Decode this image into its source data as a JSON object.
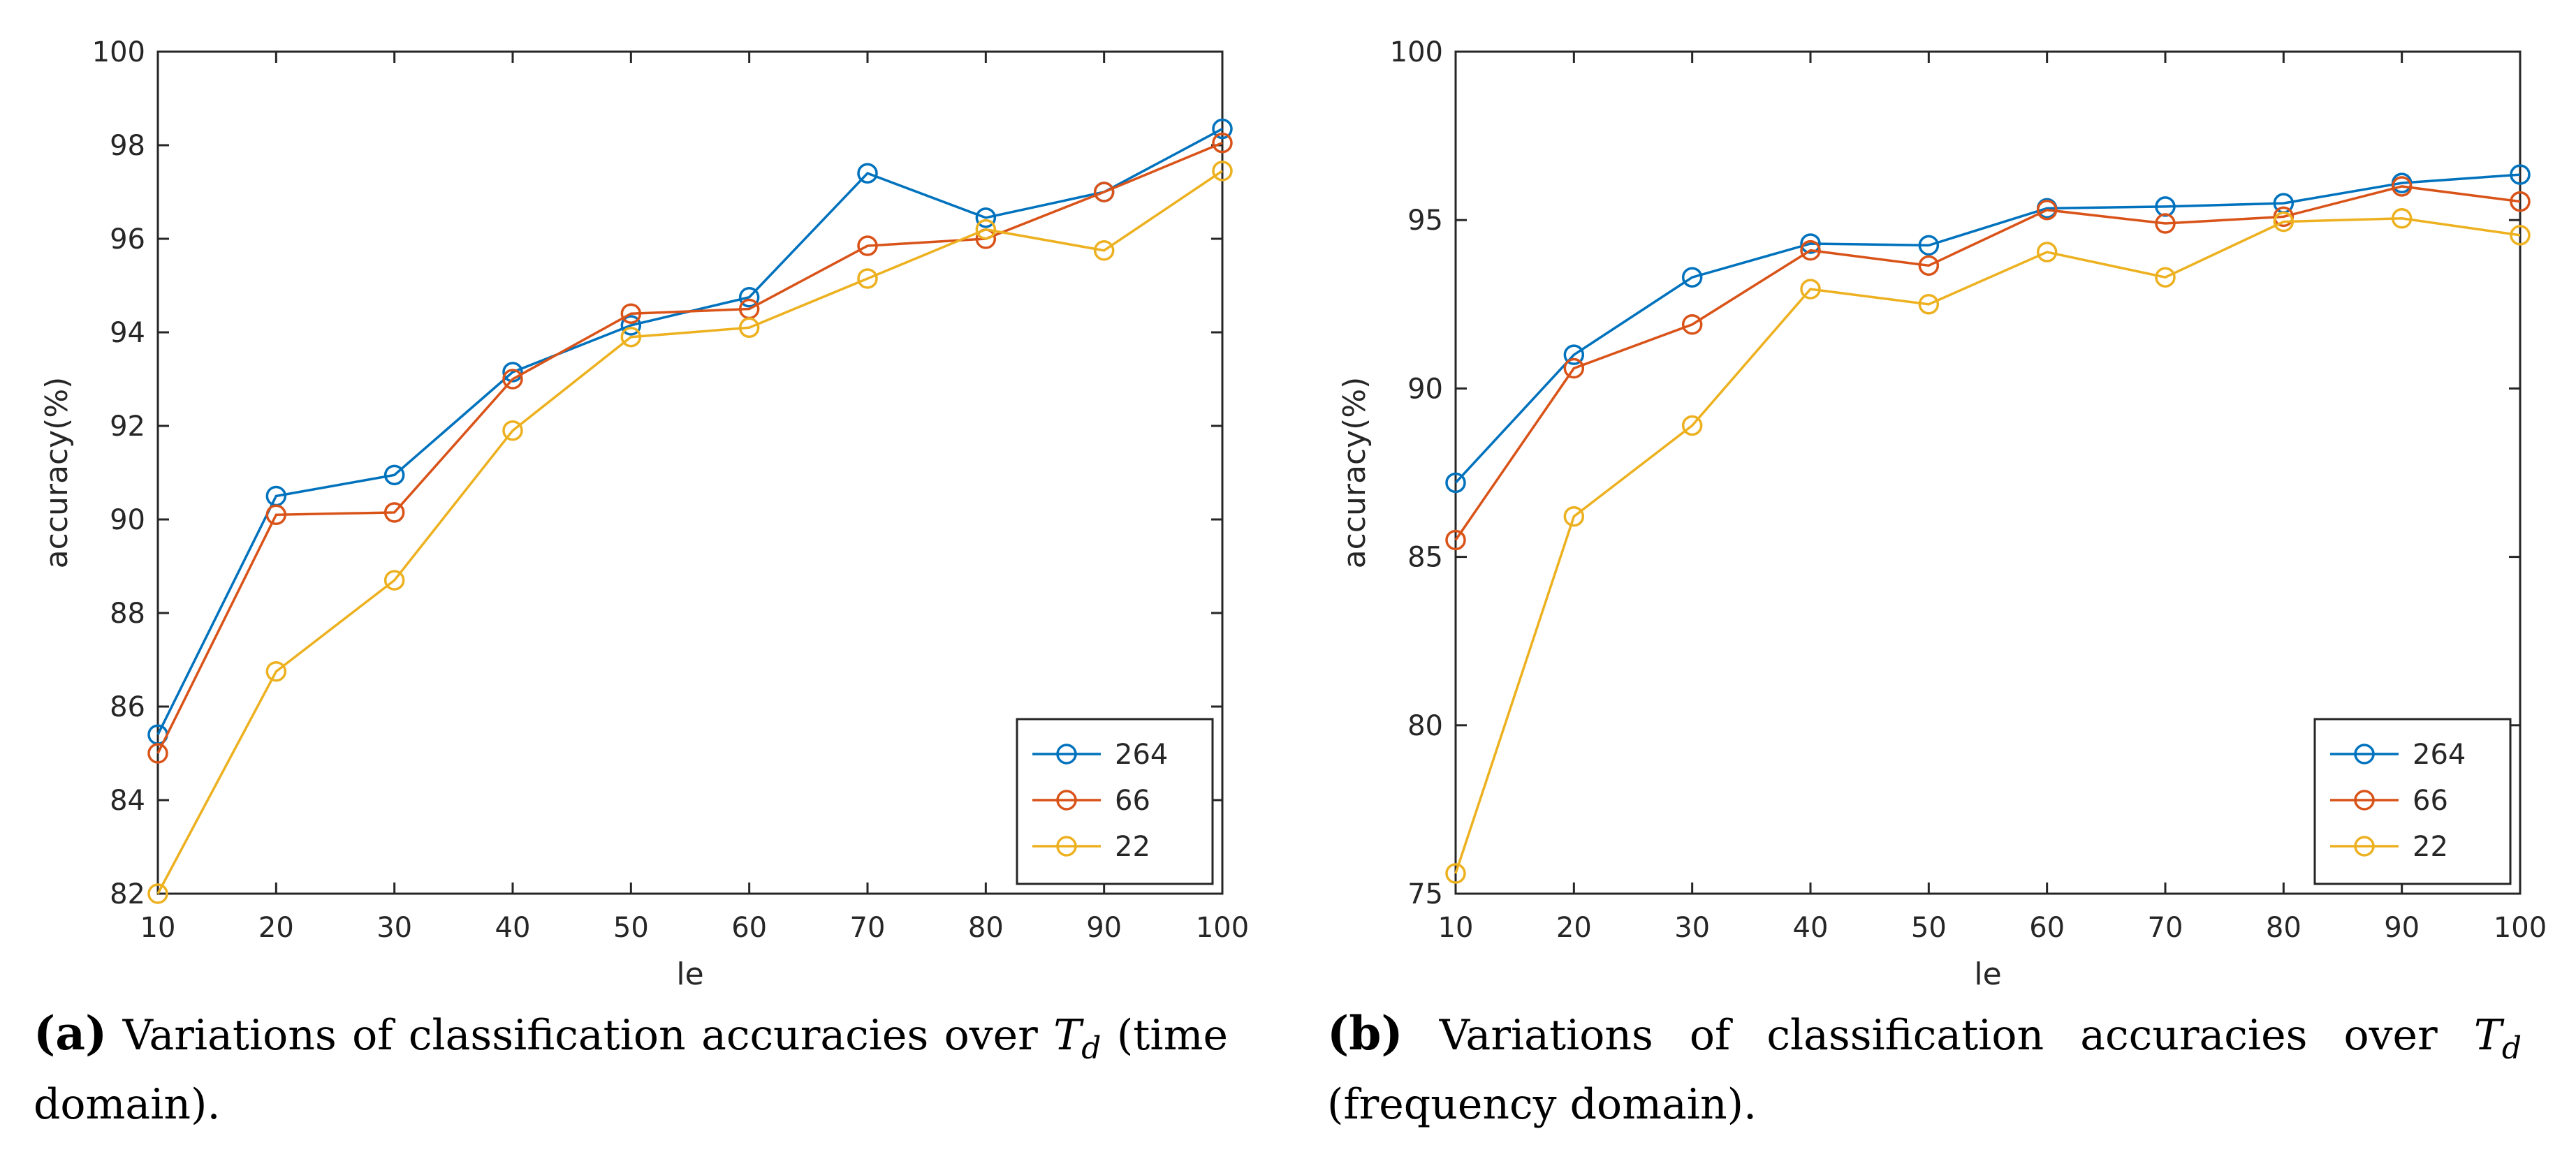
{
  "chart_data": [
    {
      "type": "line",
      "panel": "a",
      "x": [
        10,
        20,
        30,
        40,
        50,
        60,
        70,
        80,
        90,
        100
      ],
      "xlim": [
        10,
        100
      ],
      "ylim": [
        82,
        100
      ],
      "xticks": [
        10,
        20,
        30,
        40,
        50,
        60,
        70,
        80,
        90,
        100
      ],
      "yticks": [
        82,
        84,
        86,
        88,
        90,
        92,
        94,
        96,
        98,
        100
      ],
      "xlabel": "le",
      "ylabel": "accuracy(%)",
      "legend_position": "bottom-right",
      "series": [
        {
          "name": "264",
          "color": "#0072BD",
          "values": [
            85.4,
            90.5,
            90.95,
            93.15,
            94.15,
            94.75,
            97.4,
            96.45,
            97.0,
            98.35
          ]
        },
        {
          "name": "66",
          "color": "#D95319",
          "values": [
            85.0,
            90.1,
            90.15,
            93.0,
            94.4,
            94.5,
            95.85,
            96.0,
            97.0,
            98.05
          ]
        },
        {
          "name": "22",
          "color": "#EDB120",
          "values": [
            82.0,
            86.75,
            88.7,
            91.9,
            93.9,
            94.1,
            95.15,
            96.2,
            95.75,
            97.45
          ]
        }
      ]
    },
    {
      "type": "line",
      "panel": "b",
      "x": [
        10,
        20,
        30,
        40,
        50,
        60,
        70,
        80,
        90,
        100
      ],
      "xlim": [
        10,
        100
      ],
      "ylim": [
        75,
        100
      ],
      "xticks": [
        10,
        20,
        30,
        40,
        50,
        60,
        70,
        80,
        90,
        100
      ],
      "yticks": [
        75,
        80,
        85,
        90,
        95,
        100
      ],
      "xlabel": "le",
      "ylabel": "accuracy(%)",
      "legend_position": "bottom-right",
      "series": [
        {
          "name": "264",
          "color": "#0072BD",
          "values": [
            87.2,
            91.0,
            93.3,
            94.3,
            94.25,
            95.35,
            95.4,
            95.5,
            96.1,
            96.35
          ]
        },
        {
          "name": "66",
          "color": "#D95319",
          "values": [
            85.5,
            90.6,
            91.9,
            94.1,
            93.65,
            95.3,
            94.9,
            95.1,
            96.0,
            95.55
          ]
        },
        {
          "name": "22",
          "color": "#EDB120",
          "values": [
            75.6,
            86.2,
            88.9,
            92.95,
            92.5,
            94.05,
            93.3,
            94.95,
            95.05,
            94.55
          ]
        }
      ]
    }
  ],
  "captions": {
    "a": {
      "label": "(a)",
      "before": "Variations of classification accuracies over",
      "var": "T",
      "sub": "d",
      "after": "(time domain)."
    },
    "b": {
      "label": "(b)",
      "before": "Variations of classification accuracies over",
      "var": "T",
      "sub": "d",
      "after": "(frequency domain)."
    }
  }
}
